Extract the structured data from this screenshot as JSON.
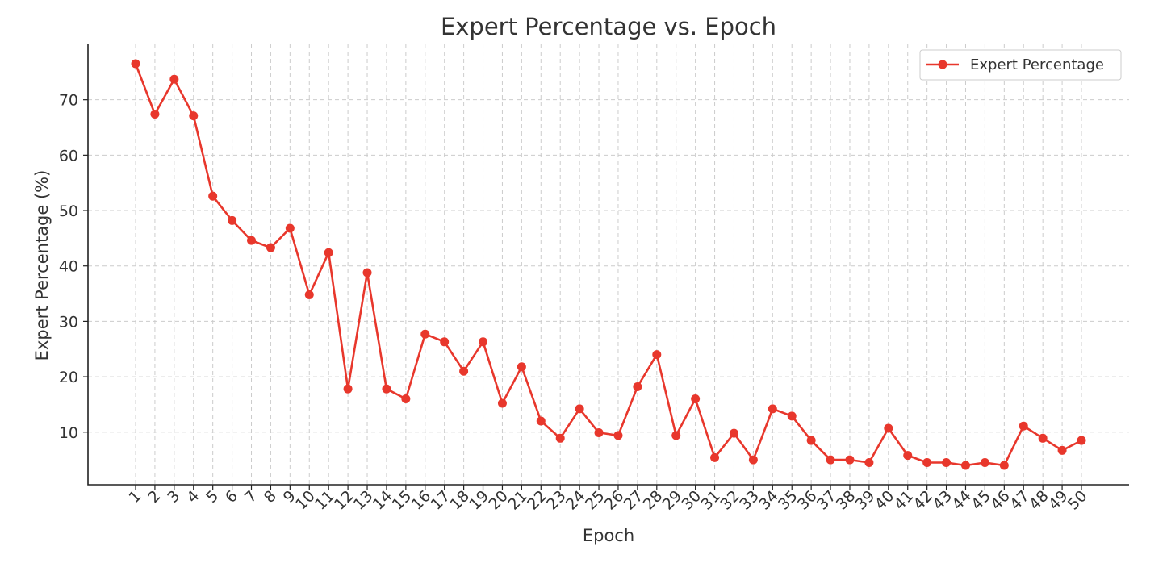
{
  "chart_data": {
    "type": "line",
    "title": "Expert Percentage vs. Epoch",
    "xlabel": "Epoch",
    "ylabel": "Expert Percentage (%)",
    "x": [
      1,
      2,
      3,
      4,
      5,
      6,
      7,
      8,
      9,
      10,
      11,
      12,
      13,
      14,
      15,
      16,
      17,
      18,
      19,
      20,
      21,
      22,
      23,
      24,
      25,
      26,
      27,
      28,
      29,
      30,
      31,
      32,
      33,
      34,
      35,
      36,
      37,
      38,
      39,
      40,
      41,
      42,
      43,
      44,
      45,
      46,
      47,
      48,
      49,
      50
    ],
    "xtick_labels": [
      "1",
      "2",
      "3",
      "4",
      "5",
      "6",
      "7",
      "8",
      "9",
      "10",
      "11",
      "12",
      "13",
      "14",
      "15",
      "16",
      "17",
      "18",
      "19",
      "20",
      "21",
      "22",
      "23",
      "24",
      "25",
      "26",
      "27",
      "28",
      "29",
      "30",
      "31",
      "32",
      "33",
      "34",
      "35",
      "36",
      "37",
      "38",
      "39",
      "40",
      "41",
      "42",
      "43",
      "44",
      "45",
      "46",
      "47",
      "48",
      "49",
      "50"
    ],
    "yticks": [
      10,
      20,
      30,
      40,
      50,
      60,
      70
    ],
    "ylim": [
      0.5,
      80
    ],
    "grid": true,
    "legend_position": "top-right",
    "series": [
      {
        "name": "Expert Percentage",
        "color": "#e8372c",
        "marker": "circle",
        "values": [
          76.5,
          67.4,
          73.7,
          67.1,
          52.6,
          48.2,
          44.6,
          43.3,
          46.8,
          34.8,
          42.4,
          17.8,
          38.8,
          17.8,
          16.0,
          27.7,
          26.3,
          21.0,
          26.3,
          15.2,
          21.8,
          12.0,
          8.9,
          14.2,
          9.9,
          9.4,
          18.2,
          24.0,
          9.4,
          16.0,
          5.4,
          9.8,
          5.0,
          14.2,
          12.9,
          8.5,
          5.0,
          5.0,
          4.5,
          10.7,
          5.8,
          4.5,
          4.5,
          4.0,
          4.5,
          4.0,
          11.1,
          8.9,
          6.7,
          8.5
        ]
      }
    ]
  }
}
